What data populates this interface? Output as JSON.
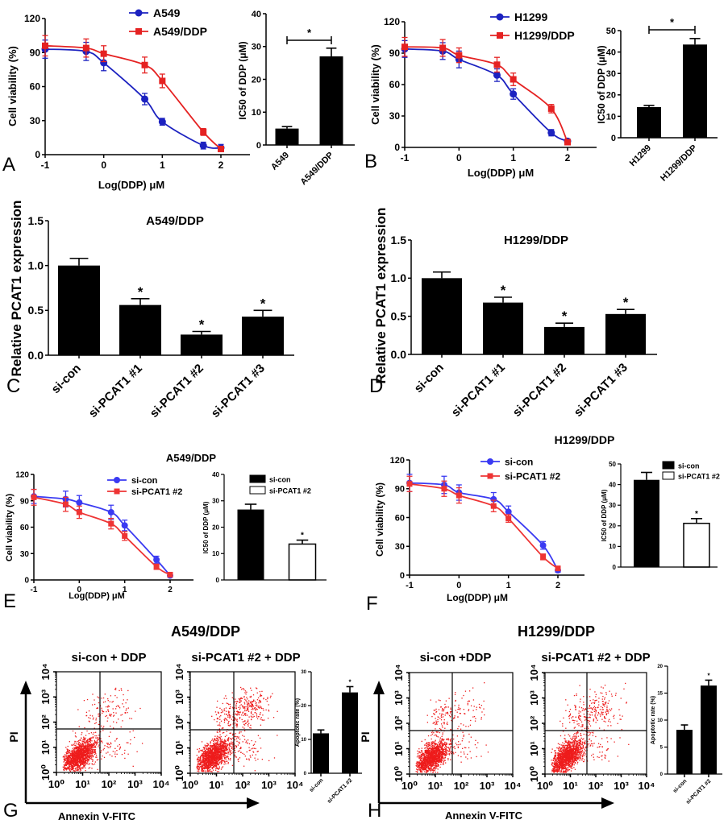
{
  "panel_letters": {
    "A": "A",
    "B": "B",
    "C": "C",
    "D": "D",
    "E": "E",
    "F": "F",
    "G": "G",
    "H": "H"
  },
  "panel_titles": {
    "E": "A549/DDP",
    "F": "H1299/DDP",
    "G": "A549/DDP",
    "H": "H1299/DDP"
  },
  "flow_axes": {
    "y_label": "PI",
    "x_label": "Annexin V-FITC"
  },
  "colors": {
    "blue_dark": "#1c22c0",
    "red_dark": "#e52222",
    "blue_light": "#3a3af2",
    "red_light": "#ee3434",
    "bar": "#000000",
    "scatter": "#ee1c1c"
  },
  "chart_data": [
    {
      "panel": "A",
      "type": "line",
      "xlabel": "Log(DDP) μM",
      "ylabel": "Cell viability (%)",
      "xlim": [
        -1,
        2.5
      ],
      "ylim": [
        0,
        120
      ],
      "xticks": [
        "-1",
        "0",
        "1",
        "2"
      ],
      "yticks": [
        "0",
        "30",
        "60",
        "90",
        "120"
      ],
      "legend": "top",
      "series": [
        {
          "name": "A549",
          "color": "#1c22c0",
          "marker": "circle",
          "x": [
            -1,
            -0.3,
            0,
            0.7,
            1,
            1.7,
            2
          ],
          "y": [
            93,
            91,
            81,
            49,
            29,
            8,
            6
          ],
          "err": [
            8,
            8,
            7,
            5,
            3,
            3,
            3
          ]
        },
        {
          "name": "A549/DDP",
          "color": "#e52222",
          "marker": "square",
          "x": [
            -1,
            -0.3,
            0,
            0.7,
            1,
            1.7,
            2
          ],
          "y": [
            96,
            94,
            89,
            79,
            65,
            20,
            5
          ],
          "err": [
            9,
            8,
            7,
            7,
            6,
            3,
            2
          ]
        }
      ]
    },
    {
      "panel": "A",
      "type": "bar",
      "ylabel": "IC50 of DDP (μM)",
      "ylim": [
        0,
        40
      ],
      "yticks": [
        "0",
        "10",
        "20",
        "30",
        "40"
      ],
      "categories": [
        "A549",
        "A549/DDP"
      ],
      "values": [
        5,
        27
      ],
      "err": [
        0.6,
        2.5
      ],
      "fills": [
        "#000000",
        "#000000"
      ],
      "comparison": "*"
    },
    {
      "panel": "B",
      "type": "line",
      "xlabel": "Log(DDP) μM",
      "ylabel": "Cell viability (%)",
      "xlim": [
        -1,
        2.5
      ],
      "ylim": [
        0,
        120
      ],
      "xticks": [
        "-1",
        "0",
        "1",
        "2"
      ],
      "yticks": [
        "0",
        "30",
        "60",
        "90",
        "120"
      ],
      "legend": "top",
      "series": [
        {
          "name": "H1299",
          "color": "#1c22c0",
          "marker": "circle",
          "x": [
            -1,
            -0.3,
            0,
            0.7,
            1,
            1.7,
            2
          ],
          "y": [
            94,
            92,
            84,
            69,
            51,
            14,
            6
          ],
          "err": [
            8,
            8,
            8,
            6,
            5,
            3,
            2
          ]
        },
        {
          "name": "H1299/DDP",
          "color": "#e52222",
          "marker": "square",
          "x": [
            -1,
            -0.3,
            0,
            0.7,
            1,
            1.7,
            2
          ],
          "y": [
            96,
            95,
            88,
            79,
            65,
            37,
            5
          ],
          "err": [
            9,
            8,
            7,
            7,
            6,
            4,
            2
          ]
        }
      ]
    },
    {
      "panel": "B",
      "type": "bar",
      "ylabel": "IC50 of DDP (μM)",
      "ylim": [
        0,
        50
      ],
      "yticks": [
        "0",
        "10",
        "20",
        "30",
        "40",
        "50"
      ],
      "categories": [
        "H1299",
        "H1299/DDP"
      ],
      "values": [
        14.3,
        43.5
      ],
      "err": [
        0.8,
        2.8
      ],
      "fills": [
        "#000000",
        "#000000"
      ],
      "comparison": "*"
    },
    {
      "panel": "C",
      "type": "bar",
      "title": "A549/DDP",
      "ylabel": "Relative PCAT1 expression",
      "ylim": [
        0,
        1.5
      ],
      "yticks": [
        "0.0",
        "0.5",
        "1.0",
        "1.5"
      ],
      "categories": [
        "si-con",
        "si-PCAT1 #1",
        "si-PCAT1 #2",
        "si-PCAT1 #3"
      ],
      "values": [
        1.0,
        0.56,
        0.23,
        0.43
      ],
      "err": [
        0.08,
        0.07,
        0.035,
        0.07
      ],
      "fills": [
        "#000000",
        "#000000",
        "#000000",
        "#000000"
      ],
      "stars": [
        "",
        "*",
        "*",
        "*"
      ]
    },
    {
      "panel": "D",
      "type": "bar",
      "title": "H1299/DDP",
      "ylabel": "Relative PCAT1 expression",
      "ylim": [
        0,
        1.5
      ],
      "yticks": [
        "0.0",
        "0.5",
        "1.0",
        "1.5"
      ],
      "categories": [
        "si-con",
        "si-PCAT1 #1",
        "si-PCAT1 #2",
        "si-PCAT1 #3"
      ],
      "values": [
        1.0,
        0.68,
        0.36,
        0.53
      ],
      "err": [
        0.08,
        0.07,
        0.05,
        0.06
      ],
      "fills": [
        "#000000",
        "#000000",
        "#000000",
        "#000000"
      ],
      "stars": [
        "",
        "*",
        "*",
        "*"
      ]
    },
    {
      "panel": "E",
      "type": "line",
      "xlabel": "Log(DDP) μM",
      "ylabel": "Cell viability (%)",
      "xlim": [
        -1,
        2.5
      ],
      "ylim": [
        0,
        120
      ],
      "xticks": [
        "-1",
        "0",
        "1",
        "2"
      ],
      "yticks": [
        "0",
        "30",
        "60",
        "90",
        "120"
      ],
      "legend": "top",
      "series": [
        {
          "name": "si-con",
          "color": "#3a3af2",
          "marker": "circle",
          "x": [
            -1,
            -0.3,
            0,
            0.7,
            1,
            1.7,
            2
          ],
          "y": [
            95,
            92,
            88,
            77,
            62,
            23,
            5
          ],
          "err": [
            8,
            9,
            8,
            8,
            6,
            4,
            2
          ]
        },
        {
          "name": "si-PCAT1 #2",
          "color": "#ee3434",
          "marker": "square",
          "x": [
            -1,
            -0.3,
            0,
            0.7,
            1,
            1.7,
            2
          ],
          "y": [
            94,
            86,
            77,
            64,
            50,
            15,
            6
          ],
          "err": [
            9,
            8,
            7,
            6,
            5,
            3,
            2
          ]
        }
      ]
    },
    {
      "panel": "E",
      "type": "bar",
      "ylabel": "IC50 of DDP (μM)",
      "ylim": [
        0,
        40
      ],
      "yticks": [
        "0",
        "10",
        "20",
        "30",
        "40"
      ],
      "legend_labels": [
        "si-con",
        "si-PCAT1 #2"
      ],
      "values": [
        26.7,
        13.6
      ],
      "err": [
        2.0,
        1.5
      ],
      "fills": [
        "#000000",
        "#ffffff"
      ],
      "stars": [
        "",
        "*"
      ]
    },
    {
      "panel": "F",
      "type": "line",
      "xlabel": "Log(DDP) μM",
      "ylabel": "Cell viability (%)",
      "xlim": [
        -1,
        2.5
      ],
      "ylim": [
        0,
        120
      ],
      "xticks": [
        "-1",
        "0",
        "1",
        "2"
      ],
      "yticks": [
        "0",
        "30",
        "60",
        "90",
        "120"
      ],
      "legend": "top",
      "series": [
        {
          "name": "si-con",
          "color": "#3a3af2",
          "marker": "circle",
          "x": [
            -1,
            -0.3,
            0,
            0.7,
            1,
            1.7,
            2
          ],
          "y": [
            96,
            94,
            86,
            79,
            66,
            31,
            5
          ],
          "err": [
            9,
            9,
            8,
            7,
            6,
            4,
            2
          ]
        },
        {
          "name": "si-PCAT1 #2",
          "color": "#ee3434",
          "marker": "square",
          "x": [
            -1,
            -0.3,
            0,
            0.7,
            1,
            1.7,
            2
          ],
          "y": [
            95,
            90,
            83,
            72,
            59,
            19,
            7
          ],
          "err": [
            8,
            8,
            8,
            6,
            4,
            3,
            2
          ]
        }
      ]
    },
    {
      "panel": "F",
      "type": "bar",
      "ylabel": "IC50 of DDP (μM)",
      "ylim": [
        0,
        50
      ],
      "yticks": [
        "0",
        "10",
        "20",
        "30",
        "40",
        "50"
      ],
      "legend_labels": [
        "si-con",
        "si-PCAT1 #2"
      ],
      "values": [
        42.3,
        21.2
      ],
      "err": [
        3.6,
        2.3
      ],
      "fills": [
        "#000000",
        "#ffffff"
      ],
      "stars": [
        "",
        "*"
      ]
    },
    {
      "panel": "G",
      "type": "scatter",
      "title": "si-con + DDP",
      "xticks": [
        "10⁰",
        "10¹",
        "10²",
        "10³",
        "10⁴"
      ],
      "yticks": [
        "10⁰",
        "10¹",
        "10²",
        "10³",
        "10⁴"
      ],
      "xscale": "log",
      "yscale": "log"
    },
    {
      "panel": "G",
      "type": "scatter",
      "title": "si-PCAT1 #2 + DDP",
      "xticks": [
        "10⁰",
        "10¹",
        "10²",
        "10³",
        "10⁴"
      ],
      "yticks": [
        "10⁰",
        "10¹",
        "10²",
        "10³",
        "10⁴"
      ],
      "xscale": "log",
      "yscale": "log"
    },
    {
      "panel": "G",
      "type": "bar",
      "ylabel": "Apoptotic rate (%)",
      "ylim": [
        0,
        30
      ],
      "yticks": [
        "0",
        "10",
        "20",
        "30"
      ],
      "categories": [
        "si-con",
        "si-PCAT1 #2"
      ],
      "values": [
        11.8,
        23.9
      ],
      "err": [
        1.0,
        1.7
      ],
      "fills": [
        "#000000",
        "#000000"
      ],
      "stars": [
        "",
        "*"
      ]
    },
    {
      "panel": "H",
      "type": "scatter",
      "title": "si-con +DDP",
      "xticks": [
        "10⁰",
        "10¹",
        "10²",
        "10³",
        "10⁴"
      ],
      "yticks": [
        "10⁰",
        "10¹",
        "10²",
        "10³",
        "10⁴"
      ],
      "xscale": "log",
      "yscale": "log"
    },
    {
      "panel": "H",
      "type": "scatter",
      "title": "si-PCAT1 #2 + DDP",
      "xticks": [
        "10⁰",
        "10¹",
        "10²",
        "10³",
        "10⁴"
      ],
      "yticks": [
        "10⁰",
        "10¹",
        "10²",
        "10³",
        "10⁴"
      ],
      "xscale": "log",
      "yscale": "log"
    },
    {
      "panel": "H",
      "type": "bar",
      "ylabel": "Apoptotic rate (%)",
      "ylim": [
        0,
        20
      ],
      "yticks": [
        "0",
        "5",
        "10",
        "15",
        "20"
      ],
      "categories": [
        "si-con",
        "si-PCAT1 #2"
      ],
      "values": [
        8.2,
        16.4
      ],
      "err": [
        0.9,
        1.0
      ],
      "fills": [
        "#000000",
        "#000000"
      ],
      "stars": [
        "",
        "*"
      ]
    }
  ]
}
